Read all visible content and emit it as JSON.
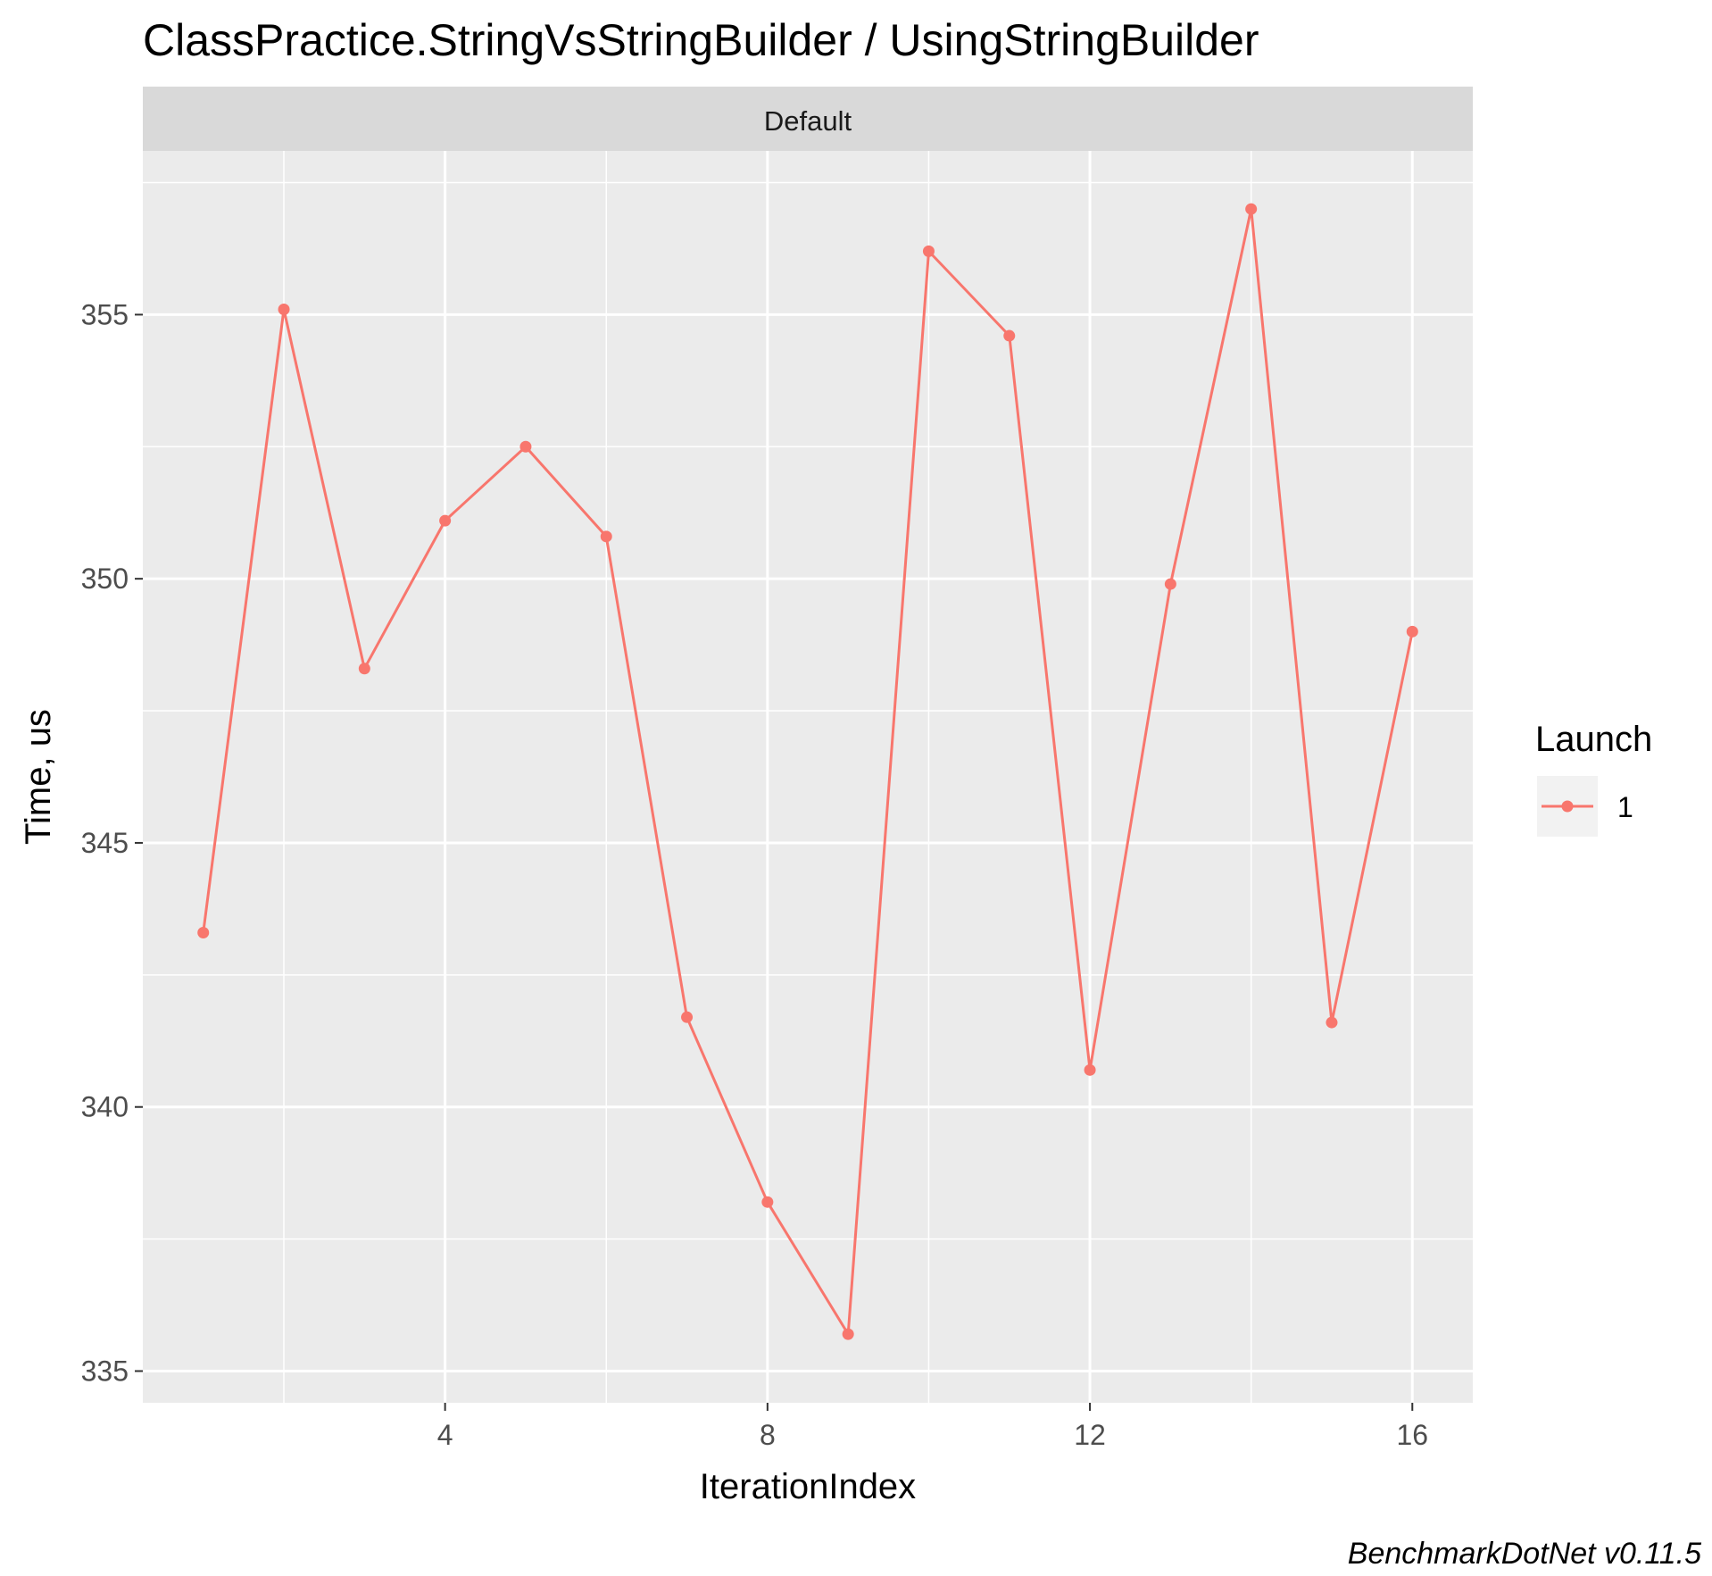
{
  "chart_data": {
    "type": "line",
    "title": "ClassPractice.StringVsStringBuilder / UsingStringBuilder",
    "facet": "Default",
    "xlabel": "IterationIndex",
    "ylabel": "Time, us",
    "caption": "BenchmarkDotNet v0.11.5",
    "xlim": [
      0.25,
      16.75
    ],
    "ylim": [
      334.4,
      358.1
    ],
    "x_ticks": [
      4,
      8,
      12,
      16
    ],
    "y_ticks": [
      335,
      340,
      345,
      350,
      355
    ],
    "grid": true,
    "legend": {
      "title": "Launch",
      "position": "right",
      "entries": [
        "1"
      ]
    },
    "series": [
      {
        "name": "1",
        "color": "#F8766D",
        "x": [
          1,
          2,
          3,
          4,
          5,
          6,
          7,
          8,
          9,
          10,
          11,
          12,
          13,
          14,
          15,
          16
        ],
        "values": [
          343.3,
          355.1,
          348.3,
          351.1,
          352.5,
          350.8,
          341.7,
          338.2,
          335.7,
          356.2,
          354.6,
          340.7,
          349.9,
          357.0,
          341.6,
          349.0
        ]
      }
    ]
  }
}
